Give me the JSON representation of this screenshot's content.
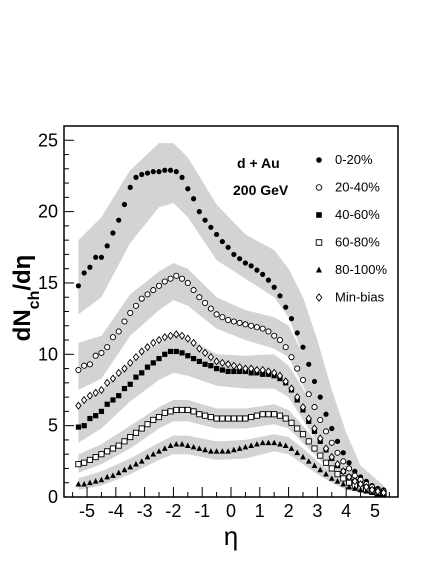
{
  "chart_data": {
    "type": "scatter",
    "xlabel": "η",
    "ylabel": {
      "main": "dN",
      "sub": "ch",
      "tail": "/dη"
    },
    "xlim": [
      -5.8,
      5.8
    ],
    "ylim": [
      0,
      26
    ],
    "xticks": [
      -5,
      -4,
      -3,
      -2,
      -1,
      0,
      1,
      2,
      3,
      4,
      5
    ],
    "yticks": [
      0,
      5,
      10,
      15,
      20,
      25
    ],
    "annotations": [
      "d + Au",
      "200 GeV"
    ],
    "band_color": "#d3d3d3",
    "series": [
      {
        "name": "0-20%",
        "marker": "circle-filled",
        "x": [
          -5.3,
          -5.1,
          -4.9,
          -4.7,
          -4.5,
          -4.3,
          -4.1,
          -3.9,
          -3.7,
          -3.5,
          -3.3,
          -3.1,
          -2.9,
          -2.7,
          -2.5,
          -2.3,
          -2.1,
          -1.9,
          -1.7,
          -1.5,
          -1.3,
          -1.1,
          -0.9,
          -0.7,
          -0.5,
          -0.3,
          -0.1,
          0.1,
          0.3,
          0.5,
          0.7,
          0.9,
          1.1,
          1.3,
          1.5,
          1.7,
          1.9,
          2.1,
          2.3,
          2.5,
          2.7,
          2.9,
          3.1,
          3.3,
          3.5,
          3.7,
          3.9,
          4.1,
          4.3,
          4.5,
          4.7,
          4.9,
          5.1,
          5.3
        ],
        "y": [
          14.8,
          15.7,
          16.1,
          16.8,
          16.8,
          17.6,
          18.5,
          19.4,
          20.5,
          21.7,
          22.4,
          22.6,
          22.7,
          22.8,
          22.8,
          22.9,
          22.9,
          22.8,
          22.4,
          21.6,
          20.9,
          20.0,
          19.4,
          18.9,
          18.4,
          17.9,
          17.5,
          17.0,
          16.7,
          16.4,
          16.2,
          15.9,
          15.6,
          15.2,
          14.7,
          14.1,
          13.3,
          12.5,
          11.5,
          10.5,
          9.3,
          8.1,
          7.0,
          5.8,
          4.8,
          3.9,
          3.1,
          2.4,
          1.8,
          1.4,
          1.1,
          0.8,
          0.6,
          0.5
        ],
        "band": {
          "x": [
            -5.3,
            -4.5,
            -3.5,
            -2.5,
            -2.0,
            -1.5,
            -0.5,
            0.5,
            1.5,
            2.0,
            2.5,
            3.0,
            3.5,
            4.0,
            4.5,
            5.3
          ],
          "upper": [
            18.0,
            19.6,
            22.9,
            24.8,
            24.8,
            23.8,
            20.5,
            18.4,
            17.3,
            16.0,
            14.0,
            11.0,
            7.5,
            4.5,
            2.2,
            0.8
          ],
          "lower": [
            12.8,
            14.0,
            17.8,
            20.3,
            20.6,
            19.6,
            16.6,
            15.3,
            14.0,
            12.6,
            10.0,
            7.2,
            4.5,
            2.4,
            1.2,
            0.3
          ]
        }
      },
      {
        "name": "20-40%",
        "marker": "circle-open",
        "x": [
          -5.3,
          -5.1,
          -4.9,
          -4.7,
          -4.5,
          -4.3,
          -4.1,
          -3.9,
          -3.7,
          -3.5,
          -3.3,
          -3.1,
          -2.9,
          -2.7,
          -2.5,
          -2.3,
          -2.1,
          -1.9,
          -1.7,
          -1.5,
          -1.3,
          -1.1,
          -0.9,
          -0.7,
          -0.5,
          -0.3,
          -0.1,
          0.1,
          0.3,
          0.5,
          0.7,
          0.9,
          1.1,
          1.3,
          1.5,
          1.7,
          1.9,
          2.1,
          2.3,
          2.5,
          2.7,
          2.9,
          3.1,
          3.3,
          3.5,
          3.7,
          3.9,
          4.1,
          4.3,
          4.5,
          4.7,
          4.9,
          5.1,
          5.3
        ],
        "y": [
          8.9,
          9.2,
          9.3,
          9.9,
          10.1,
          10.5,
          11.2,
          11.6,
          12.3,
          12.9,
          13.4,
          13.9,
          14.2,
          14.5,
          14.8,
          15.1,
          15.3,
          15.5,
          15.3,
          15.0,
          14.5,
          14.0,
          13.6,
          13.2,
          12.8,
          12.6,
          12.4,
          12.3,
          12.2,
          12.1,
          12.0,
          11.9,
          11.8,
          11.6,
          11.3,
          11.0,
          10.5,
          9.8,
          9.0,
          8.2,
          7.2,
          6.3,
          5.4,
          4.6,
          3.8,
          3.1,
          2.5,
          2.0,
          1.5,
          1.2,
          0.9,
          0.7,
          0.5,
          0.4
        ],
        "band": {
          "x": [
            -5.3,
            -4.5,
            -3.5,
            -2.5,
            -2.0,
            -1.5,
            -0.5,
            0.5,
            1.5,
            2.0,
            2.5,
            3.0,
            3.5,
            4.0,
            4.5,
            5.3
          ],
          "upper": [
            10.8,
            11.3,
            14.2,
            15.8,
            16.4,
            16.0,
            14.0,
            13.1,
            12.6,
            12.0,
            10.0,
            7.5,
            5.2,
            3.0,
            1.8,
            0.6
          ],
          "lower": [
            7.5,
            8.3,
            11.3,
            13.1,
            13.8,
            13.4,
            11.8,
            11.0,
            10.4,
            9.8,
            7.8,
            5.6,
            3.4,
            2.0,
            1.0,
            0.2
          ]
        }
      },
      {
        "name": "40-60%",
        "marker": "square-filled",
        "x": [
          -5.3,
          -5.1,
          -4.9,
          -4.7,
          -4.5,
          -4.3,
          -4.1,
          -3.9,
          -3.7,
          -3.5,
          -3.3,
          -3.1,
          -2.9,
          -2.7,
          -2.5,
          -2.3,
          -2.1,
          -1.9,
          -1.7,
          -1.5,
          -1.3,
          -1.1,
          -0.9,
          -0.7,
          -0.5,
          -0.3,
          -0.1,
          0.1,
          0.3,
          0.5,
          0.7,
          0.9,
          1.1,
          1.3,
          1.5,
          1.7,
          1.9,
          2.1,
          2.3,
          2.5,
          2.7,
          2.9,
          3.1,
          3.3,
          3.5,
          3.7,
          3.9,
          4.1,
          4.3,
          4.5,
          4.7,
          4.9,
          5.1,
          5.3
        ],
        "y": [
          4.9,
          5.0,
          5.5,
          5.7,
          6.0,
          6.5,
          6.8,
          7.1,
          7.6,
          7.9,
          8.4,
          8.7,
          9.1,
          9.4,
          9.7,
          10.0,
          10.2,
          10.2,
          10.1,
          9.9,
          9.7,
          9.5,
          9.3,
          9.2,
          9.0,
          8.9,
          8.8,
          8.8,
          8.8,
          8.8,
          8.7,
          8.7,
          8.6,
          8.6,
          8.5,
          8.3,
          8.0,
          7.5,
          6.8,
          6.1,
          5.3,
          4.6,
          3.9,
          3.3,
          2.7,
          2.2,
          1.8,
          1.4,
          1.1,
          0.9,
          0.7,
          0.5,
          0.4,
          0.3
        ],
        "band": {
          "x": [
            -5.3,
            -4.5,
            -3.5,
            -2.5,
            -2.0,
            -1.5,
            -0.5,
            0.5,
            1.5,
            2.0,
            2.5,
            3.0,
            3.5,
            4.0,
            4.5,
            5.3
          ],
          "upper": [
            6.5,
            7.5,
            9.5,
            10.8,
            11.4,
            11.1,
            10.0,
            9.9,
            10.0,
            9.2,
            7.6,
            5.8,
            4.0,
            2.6,
            1.5,
            0.5
          ],
          "lower": [
            3.8,
            4.8,
            6.7,
            8.2,
            8.7,
            8.5,
            7.8,
            7.6,
            7.6,
            7.0,
            5.4,
            3.8,
            2.4,
            1.4,
            0.8,
            0.2
          ]
        }
      },
      {
        "name": "60-80%",
        "marker": "square-open",
        "x": [
          -5.3,
          -5.1,
          -4.9,
          -4.7,
          -4.5,
          -4.3,
          -4.1,
          -3.9,
          -3.7,
          -3.5,
          -3.3,
          -3.1,
          -2.9,
          -2.7,
          -2.5,
          -2.3,
          -2.1,
          -1.9,
          -1.7,
          -1.5,
          -1.3,
          -1.1,
          -0.9,
          -0.7,
          -0.5,
          -0.3,
          -0.1,
          0.1,
          0.3,
          0.5,
          0.7,
          0.9,
          1.1,
          1.3,
          1.5,
          1.7,
          1.9,
          2.1,
          2.3,
          2.5,
          2.7,
          2.9,
          3.1,
          3.3,
          3.5,
          3.7,
          3.9,
          4.1,
          4.3,
          4.5,
          4.7,
          4.9,
          5.1,
          5.3
        ],
        "y": [
          2.3,
          2.4,
          2.6,
          2.8,
          3.0,
          3.2,
          3.4,
          3.6,
          3.9,
          4.2,
          4.5,
          4.8,
          5.1,
          5.4,
          5.6,
          5.9,
          6.0,
          6.1,
          6.1,
          6.1,
          6.0,
          5.8,
          5.7,
          5.6,
          5.5,
          5.5,
          5.5,
          5.5,
          5.5,
          5.5,
          5.6,
          5.7,
          5.8,
          5.8,
          5.8,
          5.7,
          5.5,
          5.2,
          4.8,
          4.4,
          3.9,
          3.4,
          2.9,
          2.4,
          2.0,
          1.6,
          1.3,
          1.0,
          0.8,
          0.6,
          0.5,
          0.4,
          0.3,
          0.2
        ],
        "band": {
          "x": [
            -5.3,
            -4.5,
            -3.5,
            -2.5,
            -2.0,
            -1.5,
            -0.5,
            0.5,
            1.5,
            2.0,
            2.5,
            3.0,
            3.5,
            4.0,
            4.5,
            5.3
          ],
          "upper": [
            3.0,
            3.7,
            5.0,
            6.3,
            6.8,
            6.8,
            6.2,
            6.2,
            6.5,
            6.1,
            5.0,
            3.8,
            2.6,
            1.6,
            0.9,
            0.3
          ],
          "lower": [
            1.7,
            2.3,
            3.4,
            4.8,
            5.3,
            5.3,
            4.8,
            4.8,
            5.1,
            4.8,
            3.8,
            2.8,
            1.7,
            0.9,
            0.5,
            0.1
          ]
        }
      },
      {
        "name": "80-100%",
        "marker": "triangle-filled",
        "x": [
          -5.3,
          -5.1,
          -4.9,
          -4.7,
          -4.5,
          -4.3,
          -4.1,
          -3.9,
          -3.7,
          -3.5,
          -3.3,
          -3.1,
          -2.9,
          -2.7,
          -2.5,
          -2.3,
          -2.1,
          -1.9,
          -1.7,
          -1.5,
          -1.3,
          -1.1,
          -0.9,
          -0.7,
          -0.5,
          -0.3,
          -0.1,
          0.1,
          0.3,
          0.5,
          0.7,
          0.9,
          1.1,
          1.3,
          1.5,
          1.7,
          1.9,
          2.1,
          2.3,
          2.5,
          2.7,
          2.9,
          3.1,
          3.3,
          3.5,
          3.7,
          3.9,
          4.1,
          4.3,
          4.5,
          4.7,
          4.9,
          5.1,
          5.3
        ],
        "y": [
          0.9,
          0.9,
          1.0,
          1.1,
          1.2,
          1.4,
          1.5,
          1.7,
          1.9,
          2.1,
          2.3,
          2.5,
          2.8,
          3.0,
          3.2,
          3.4,
          3.6,
          3.7,
          3.7,
          3.6,
          3.5,
          3.4,
          3.3,
          3.2,
          3.2,
          3.2,
          3.2,
          3.3,
          3.4,
          3.5,
          3.6,
          3.7,
          3.8,
          3.8,
          3.8,
          3.7,
          3.6,
          3.4,
          3.1,
          2.8,
          2.5,
          2.2,
          1.9,
          1.6,
          1.3,
          1.1,
          0.9,
          0.7,
          0.6,
          0.5,
          0.4,
          0.3,
          0.2,
          0.2
        ],
        "band": {
          "x": [
            -5.3,
            -4.5,
            -3.5,
            -2.5,
            -2.0,
            -1.5,
            -0.5,
            0.5,
            1.5,
            2.0,
            2.5,
            3.0,
            3.5,
            4.0,
            4.5,
            5.3
          ],
          "upper": [
            1.3,
            1.8,
            2.7,
            3.8,
            4.3,
            4.3,
            3.9,
            4.0,
            4.4,
            4.2,
            3.4,
            2.5,
            1.7,
            1.1,
            0.6,
            0.2
          ],
          "lower": [
            0.5,
            0.8,
            1.6,
            2.6,
            3.0,
            3.0,
            2.6,
            2.7,
            3.2,
            3.0,
            2.3,
            1.6,
            1.0,
            0.5,
            0.3,
            0.1
          ]
        }
      },
      {
        "name": "Min-bias",
        "marker": "diamond-open",
        "x": [
          -5.3,
          -5.1,
          -4.9,
          -4.7,
          -4.5,
          -4.3,
          -4.1,
          -3.9,
          -3.7,
          -3.5,
          -3.3,
          -3.1,
          -2.9,
          -2.7,
          -2.5,
          -2.3,
          -2.1,
          -1.9,
          -1.7,
          -1.5,
          -1.3,
          -1.1,
          -0.9,
          -0.7,
          -0.5,
          -0.3,
          -0.1,
          0.1,
          0.3,
          0.5,
          0.7,
          0.9,
          1.1,
          1.3,
          1.5,
          1.7,
          1.9,
          2.1,
          2.3,
          2.5,
          2.7,
          2.9,
          3.1,
          3.3,
          3.5,
          3.7,
          3.9,
          4.1,
          4.3,
          4.5,
          4.7,
          4.9,
          5.1,
          5.3
        ],
        "y": [
          6.4,
          6.8,
          7.1,
          7.3,
          7.5,
          8.0,
          8.3,
          8.7,
          9.0,
          9.4,
          9.8,
          10.2,
          10.5,
          10.8,
          11.0,
          11.2,
          11.3,
          11.4,
          11.3,
          11.1,
          10.8,
          10.4,
          10.1,
          9.8,
          9.5,
          9.4,
          9.3,
          9.2,
          9.1,
          9.0,
          9.0,
          8.9,
          8.9,
          8.8,
          8.7,
          8.5,
          8.1,
          7.6,
          7.0,
          6.3,
          5.5,
          4.8,
          4.1,
          3.4,
          2.8,
          2.3,
          1.8,
          1.4,
          1.1,
          0.9,
          0.7,
          0.5,
          0.4,
          0.3
        ]
      }
    ]
  }
}
